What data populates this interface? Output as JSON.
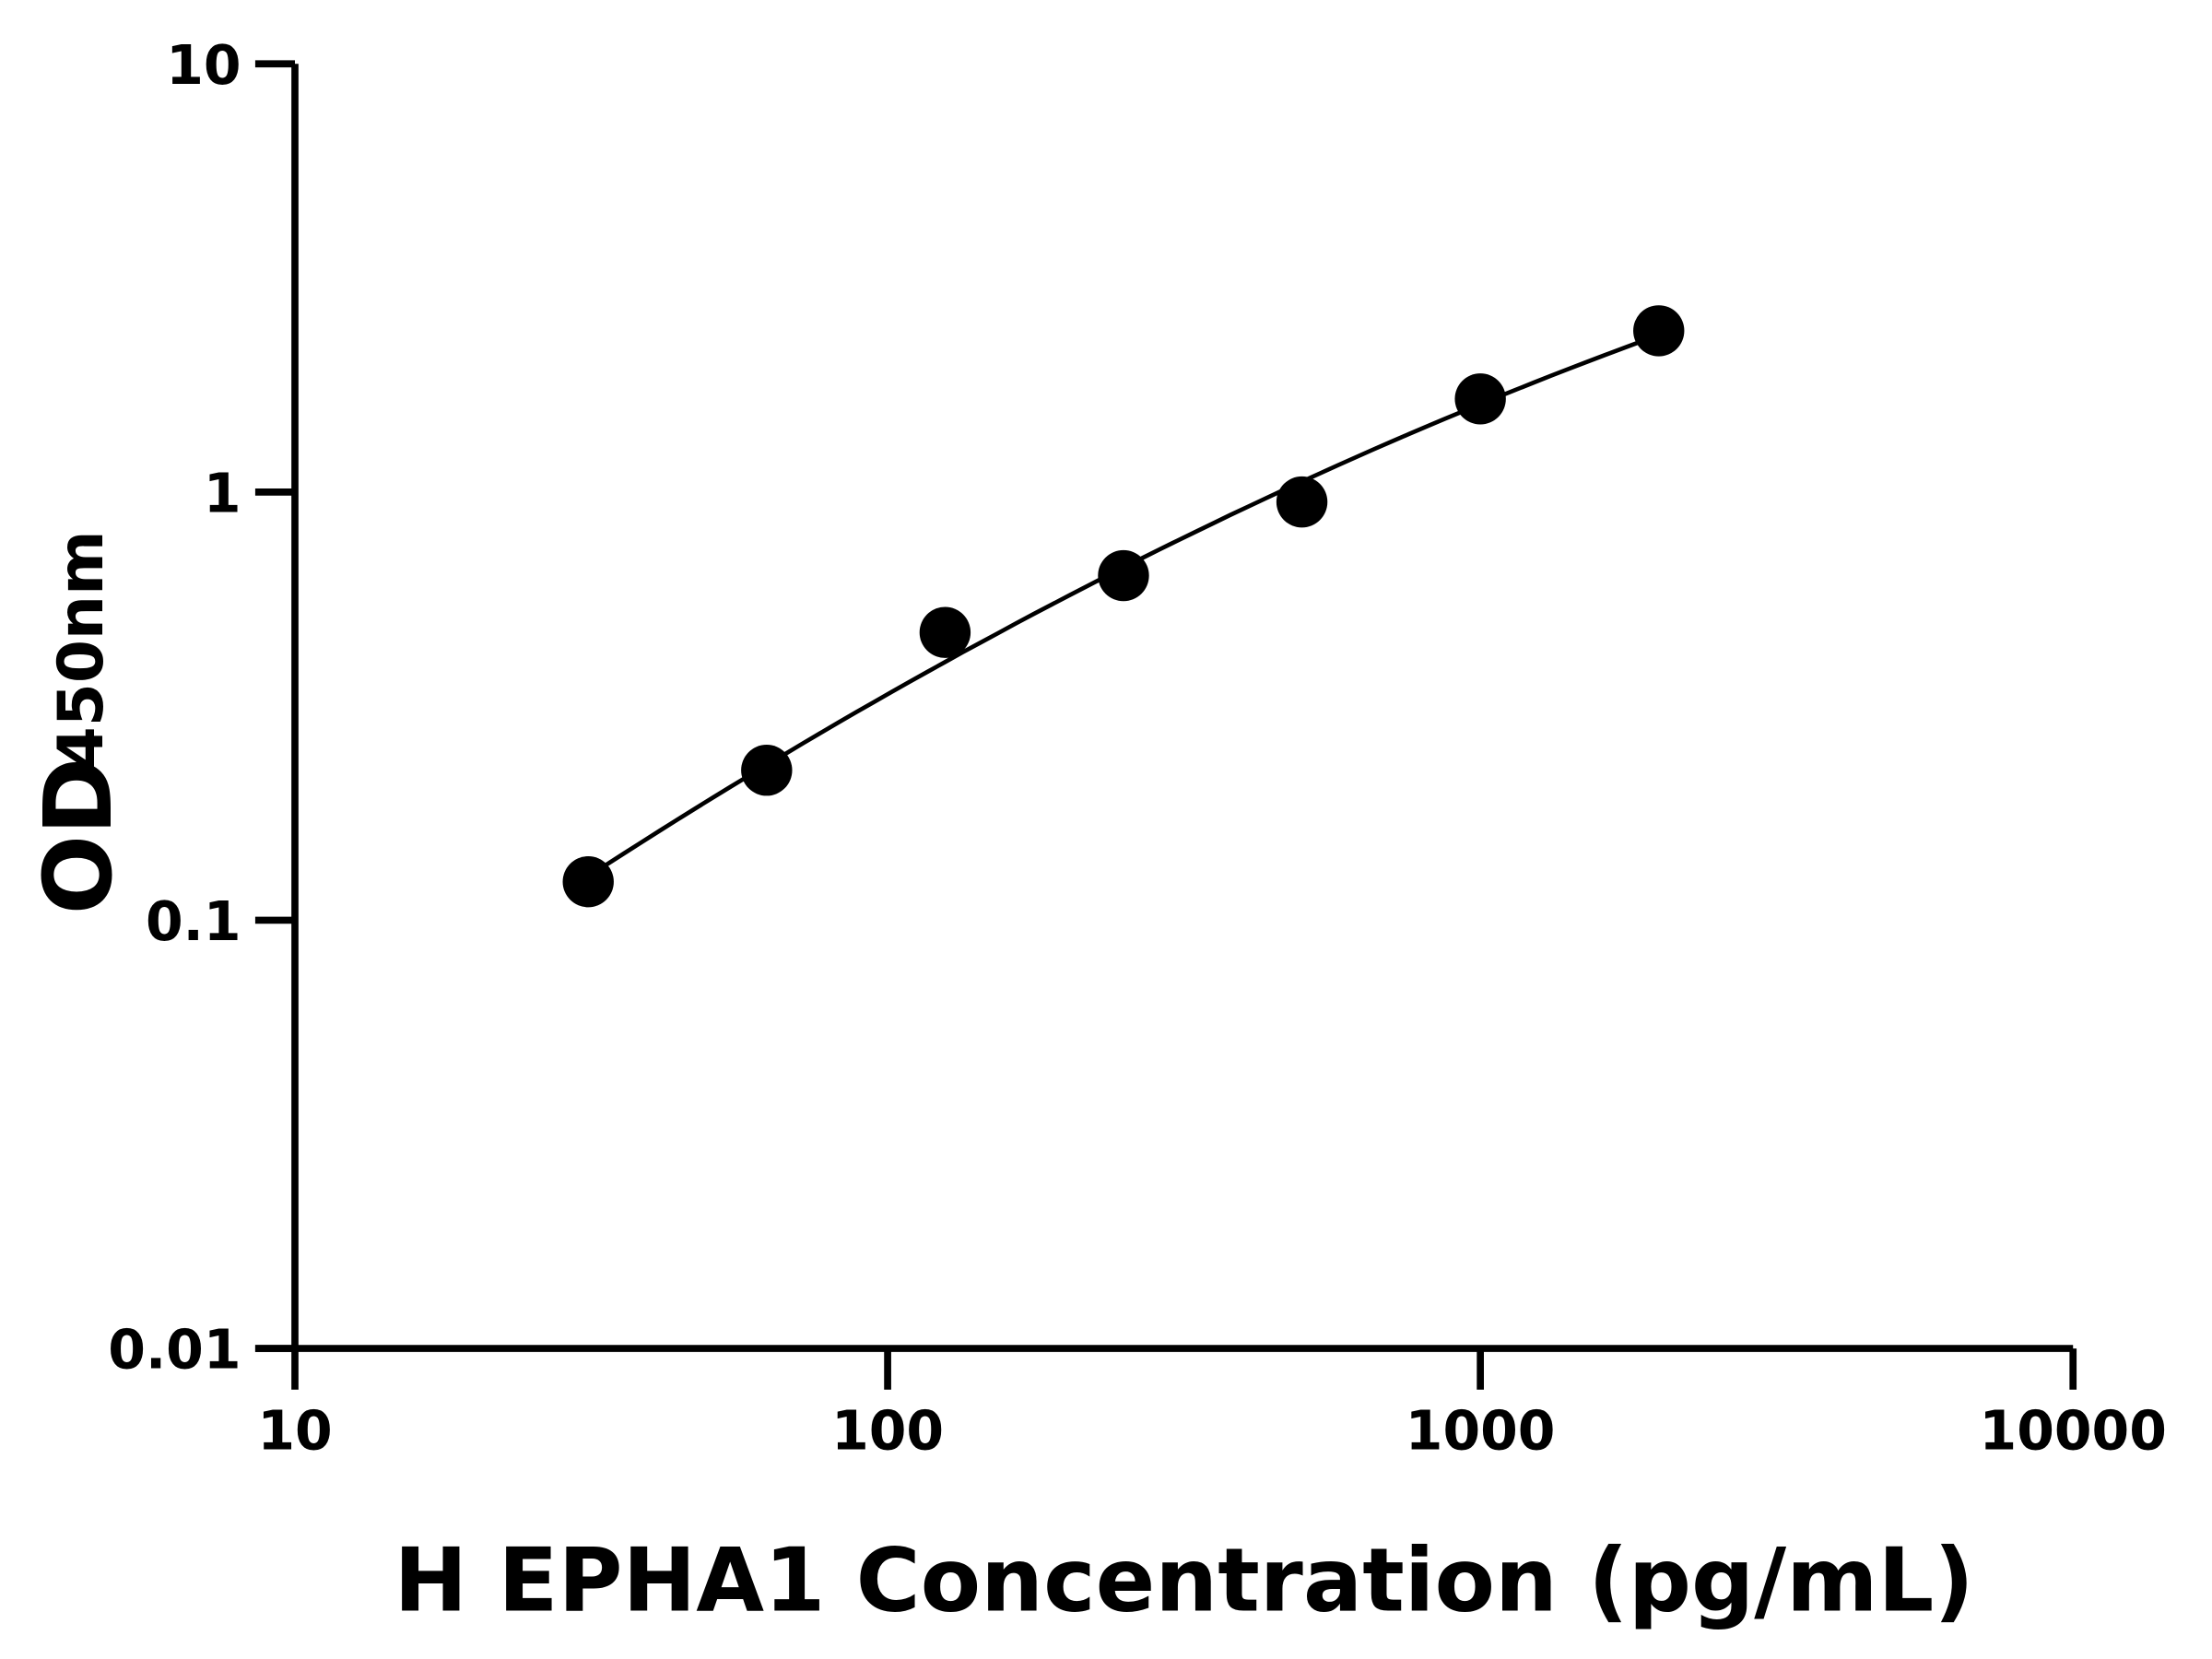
{
  "chart_data": {
    "type": "scatter",
    "title": "",
    "xlabel": "H EPHA1 Concentration (pg/mL)",
    "ylabel_main": "OD",
    "ylabel_sub": "450nm",
    "x_scale": "log",
    "y_scale": "log",
    "xlim": [
      10,
      10000
    ],
    "ylim": [
      0.01,
      10
    ],
    "x_ticks": [
      "10",
      "100",
      "1000",
      "10000"
    ],
    "y_ticks": [
      "0.01",
      "0.1",
      "1",
      "10"
    ],
    "grid": false,
    "legend": "none",
    "fit_line": true,
    "marker_color": "#000000",
    "x": [
      31.25,
      62.5,
      125,
      250,
      500,
      1000,
      2000
    ],
    "y": [
      0.123,
      0.224,
      0.47,
      0.638,
      0.948,
      1.65,
      2.38
    ]
  }
}
